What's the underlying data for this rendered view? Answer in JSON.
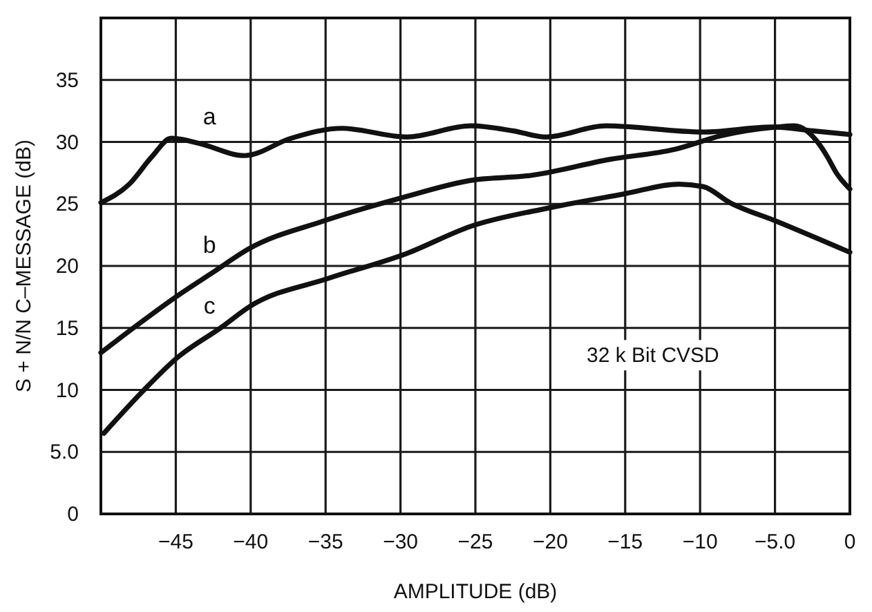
{
  "chart_data": {
    "type": "line",
    "xlabel": "AMPLITUDE (dB)",
    "ylabel": "S + N/N C–MESSAGE (dB)",
    "annotations": [
      "32 k Bit CVSD"
    ],
    "xlim": [
      -50,
      0
    ],
    "xticks": [
      -45,
      -40,
      -35,
      -30,
      -25,
      -20,
      -15,
      -10,
      {
        "value": -5,
        "label": "−5.0"
      },
      0
    ],
    "ylim": [
      0,
      40
    ],
    "yticks": [
      0,
      {
        "value": 5,
        "label": "5.0"
      },
      10,
      15,
      20,
      25,
      30,
      35
    ],
    "grid": true,
    "line_style": "solid",
    "series": [
      {
        "name": "a",
        "color": "#111111",
        "x": [
          -50,
          -48.1,
          -46.6,
          -45.3,
          -43.5,
          -40.4,
          -37.3,
          -33.9,
          -29.6,
          -25.3,
          -22.5,
          -20.3,
          -16.3,
          -9.8,
          -5.2,
          -2.5,
          0
        ],
        "values": [
          25.1,
          26.6,
          28.8,
          30.3,
          29.9,
          28.9,
          30.3,
          31.1,
          30.4,
          31.3,
          30.9,
          30.4,
          31.3,
          30.8,
          31.2,
          30.9,
          30.6
        ]
      },
      {
        "name": "b",
        "color": "#111111",
        "x": [
          -50,
          -47.5,
          -45,
          -42.5,
          -40.1,
          -35.2,
          -29.9,
          -25.3,
          -21.3,
          -16,
          -11.7,
          -8.6,
          -4.9,
          -3.7,
          -2.1,
          -1.5,
          -0.9,
          0
        ],
        "values": [
          13,
          15.3,
          17.5,
          19.5,
          21.4,
          23.6,
          25.5,
          26.9,
          27.3,
          28.6,
          29.4,
          30.5,
          31.2,
          31.3,
          29.9,
          28.8,
          27.5,
          26.2
        ]
      },
      {
        "name": "c",
        "color": "#111111",
        "x": [
          -49.8,
          -47.2,
          -45,
          -41.9,
          -40.1,
          -34.8,
          -29.6,
          -25.3,
          -20,
          -15.1,
          -11.4,
          -9.8,
          -8,
          -4.9,
          0
        ],
        "values": [
          6.5,
          9.9,
          12.5,
          15.1,
          16.7,
          19,
          21,
          23.2,
          24.7,
          25.8,
          26.6,
          26.4,
          25.1,
          23.6,
          21.1
        ]
      }
    ]
  }
}
